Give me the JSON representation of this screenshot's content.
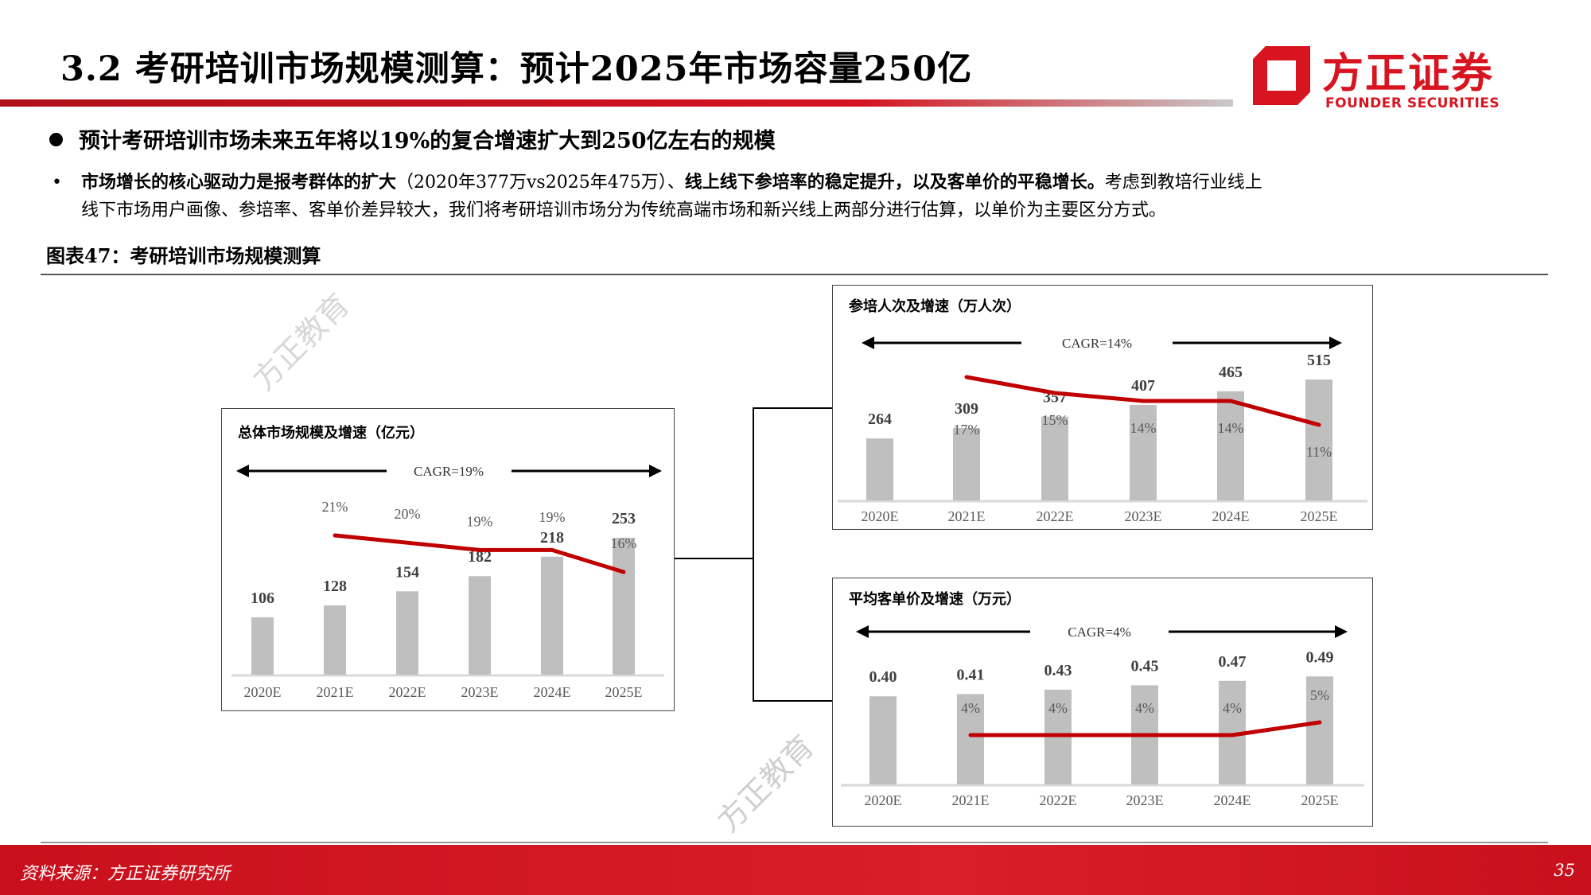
{
  "header": {
    "title": "3.2 考研培训市场规模测算：预计2025年市场容量250亿",
    "logo_cn": "方正证券",
    "logo_en": "FOUNDER SECURITIES"
  },
  "bullet_main": "预计考研培训市场未来五年将以19%的复合增速扩大到250亿左右的规模",
  "paragraph": {
    "bold1": "市场增长的核心驱动力是报考群体的扩大",
    "normal1": "（2020年377万vs2025年475万）、",
    "bold2": "线上线下参培率的稳定提升，以及客单价的平稳增长。",
    "normal2": "考虑到教培行业线上",
    "line2": "线下市场用户画像、参培率、客单价差异较大，我们将考研培训市场分为传统高端市场和新兴线上两部分进行估算，以单价为主要区分方式。"
  },
  "figure_caption": "图表47：考研培训市场规模测算",
  "watermark": "方正教育",
  "colors": {
    "brand_red": "#d7141f",
    "bar": "#bfbfbf",
    "line": "#c00000"
  },
  "chart_data": [
    {
      "type": "bar",
      "title": "总体市场规模及增速（亿元）",
      "cagr": "CAGR=19%",
      "categories": [
        "2020E",
        "2021E",
        "2022E",
        "2023E",
        "2024E",
        "2025E"
      ],
      "values": [
        "106",
        "128",
        "154",
        "182",
        "218",
        "253"
      ],
      "growth": [
        "",
        "21%",
        "20%",
        "19%",
        "19%",
        "16%"
      ],
      "series": [
        {
          "name": "市场规模",
          "unit": "亿元"
        },
        {
          "name": "增速",
          "type": "line"
        }
      ]
    },
    {
      "type": "bar",
      "title": "参培人次及增速（万人次）",
      "cagr": "CAGR=14%",
      "categories": [
        "2020E",
        "2021E",
        "2022E",
        "2023E",
        "2024E",
        "2025E"
      ],
      "values": [
        "264",
        "309",
        "357",
        "407",
        "465",
        "515"
      ],
      "growth": [
        "",
        "17%",
        "15%",
        "14%",
        "14%",
        "11%"
      ],
      "series": [
        {
          "name": "参培人次",
          "unit": "万人次"
        },
        {
          "name": "增速",
          "type": "line"
        }
      ]
    },
    {
      "type": "bar",
      "title": "平均客单价及增速（万元）",
      "cagr": "CAGR=4%",
      "categories": [
        "2020E",
        "2021E",
        "2022E",
        "2023E",
        "2024E",
        "2025E"
      ],
      "values": [
        "0.40",
        "0.41",
        "0.43",
        "0.45",
        "0.47",
        "0.49"
      ],
      "growth": [
        "",
        "4%",
        "4%",
        "4%",
        "4%",
        "5%"
      ],
      "series": [
        {
          "name": "客单价",
          "unit": "万元"
        },
        {
          "name": "增速",
          "type": "line"
        }
      ]
    }
  ],
  "footer": {
    "source": "资料来源：方正证券研究所",
    "page": "35"
  }
}
